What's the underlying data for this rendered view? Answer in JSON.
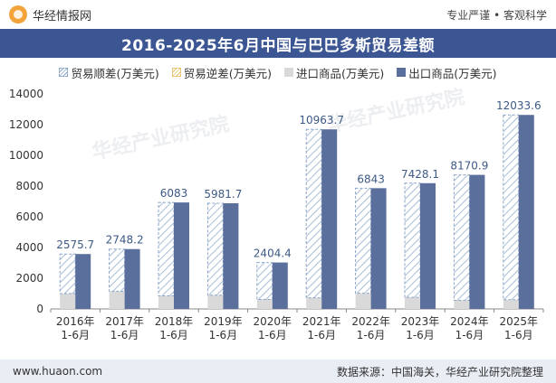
{
  "header": {
    "brand_name": "华经情报网",
    "tagline": "专业严谨 • 客观科学"
  },
  "title": "2016-2025年6月中国与巴巴多斯贸易差额",
  "legend": {
    "surplus": "贸易顺差(万美元)",
    "deficit": "贸易逆差(万美元)",
    "import": "进口商品(万美元)",
    "export": "出口商品(万美元)"
  },
  "footer": {
    "website": "www.huaon.com",
    "source": "数据来源：中国海关，华经产业研究院整理"
  },
  "watermark": {
    "text": "华经产业研究院"
  },
  "colors": {
    "title_bg": "#3b5692",
    "export": "#5b6f9c",
    "import": "#d9d9d9",
    "surplus_hatch": "#8aa6c8",
    "label": "#3d5a86"
  },
  "chart_data": {
    "type": "bar",
    "categories": [
      "2016年\n1-6月",
      "2017年\n1-6月",
      "2018年\n1-6月",
      "2019年\n1-6月",
      "2020年\n1-6月",
      "2021年\n1-6月",
      "2022年\n1-6月",
      "2023年\n1-6月",
      "2024年\n1-6月",
      "2025年\n1-6月"
    ],
    "series": [
      {
        "name": "贸易顺差(万美元)",
        "values": [
          2575.7,
          2748.2,
          6083,
          5981.7,
          2404.4,
          10963.7,
          6843,
          7428.1,
          8170.9,
          12033.6
        ]
      },
      {
        "name": "贸易逆差(万美元)",
        "values": [
          0,
          0,
          0,
          0,
          0,
          0,
          0,
          0,
          0,
          0
        ]
      },
      {
        "name": "进口商品(万美元)",
        "values": [
          1000,
          1150,
          850,
          900,
          620,
          730,
          1020,
          760,
          560,
          600
        ]
      },
      {
        "name": "出口商品(万美元)",
        "values": [
          3575.7,
          3898.2,
          6933,
          6881.7,
          3024.4,
          11693.7,
          7863,
          8188.1,
          8730.9,
          12633.6
        ]
      }
    ],
    "data_labels": [
      "2575.7",
      "2748.2",
      "6083",
      "5981.7",
      "2404.4",
      "10963.7",
      "6843",
      "7428.1",
      "8170.9",
      "12033.6"
    ],
    "y_ticks": [
      "0",
      "2000",
      "4000",
      "6000",
      "8000",
      "10000",
      "12000",
      "14000"
    ],
    "ylim": [
      0,
      14000
    ],
    "legend_position": "top",
    "grid": false
  }
}
